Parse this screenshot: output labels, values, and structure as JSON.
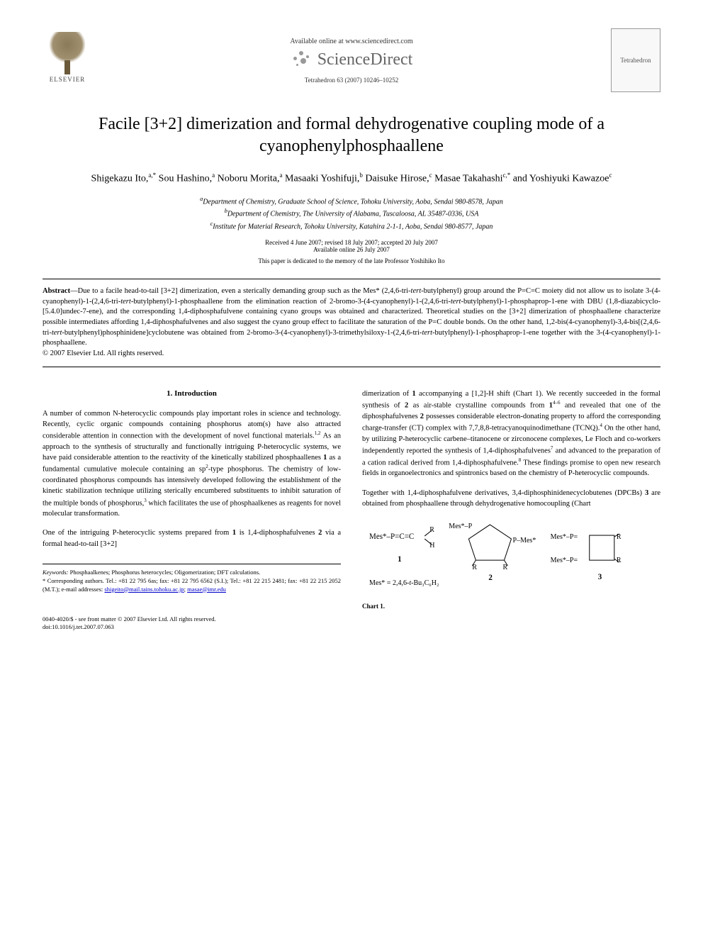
{
  "banner": {
    "publisher": "ELSEVIER",
    "available_text": "Available online at www.sciencedirect.com",
    "sd_name": "ScienceDirect",
    "journal_ref": "Tetrahedron 63 (2007) 10246–10252",
    "journal_name": "Tetrahedron"
  },
  "title": "Facile [3+2] dimerization and formal dehydrogenative coupling mode of a cyanophenylphosphaallene",
  "authors_html": "Shigekazu Ito,<sup>a,*</sup> Sou Hashino,<sup>a</sup> Noboru Morita,<sup>a</sup> Masaaki Yoshifuji,<sup>b</sup> Daisuke Hirose,<sup>c</sup> Masae Takahashi<sup>c,*</sup> and Yoshiyuki Kawazoe<sup>c</sup>",
  "affiliations": {
    "a": "Department of Chemistry, Graduate School of Science, Tohoku University, Aoba, Sendai 980-8578, Japan",
    "b": "Department of Chemistry, The University of Alabama, Tuscaloosa, AL 35487-0336, USA",
    "c": "Institute for Material Research, Tohoku University, Katahira 2-1-1, Aoba, Sendai 980-8577, Japan"
  },
  "dates": {
    "received": "Received 4 June 2007; revised 18 July 2007; accepted 20 July 2007",
    "online": "Available online 26 July 2007"
  },
  "dedication": "This paper is dedicated to the memory of the late Professor Yoshihiko Ito",
  "abstract_label": "Abstract",
  "abstract_body": "—Due to a facile head-to-tail [3+2] dimerization, even a sterically demanding group such as the Mes* (2,4,6-tri-<i>tert</i>-butylphenyl) group around the P=C=C moiety did not allow us to isolate 3-(4-cyanophenyl)-1-(2,4,6-tri-<i>tert</i>-butylphenyl)-1-phosphaallene from the elimination reaction of 2-bromo-3-(4-cyanophenyl)-1-(2,4,6-tri-<i>tert</i>-butylphenyl)-1-phosphaprop-1-ene with DBU (1,8-diazabicyclo-[5.4.0]undec-7-ene), and the corresponding 1,4-diphosphafulvene containing cyano groups was obtained and characterized. Theoretical studies on the [3+2] dimerization of phosphaallene characterize possible intermediates affording 1,4-diphosphafulvenes and also suggest the cyano group effect to facilitate the saturation of the P=C double bonds. On the other hand, 1,2-bis(4-cyanophenyl)-3,4-bis[(2,4,6-tri-<i>tert</i>-butylphenyl)phosphinidene]cyclobutene was obtained from 2-bromo-3-(4-cyanophenyl)-3-trimethylsiloxy-1-(2,4,6-tri-<i>tert</i>-butylphenyl)-1-phosphaprop-1-ene together with the 3-(4-cyanophenyl)-1-phosphaallene.",
  "copyright_abs": "© 2007 Elsevier Ltd. All rights reserved.",
  "section1": {
    "heading": "1. Introduction",
    "p1": "A number of common N-heterocyclic compounds play important roles in science and technology. Recently, cyclic organic compounds containing phosphorus atom(s) have also attracted considerable attention in connection with the development of novel functional materials.<sup>1,2</sup> As an approach to the synthesis of structurally and functionally intriguing P-heterocyclic systems, we have paid considerable attention to the reactivity of the kinetically stabilized phosphaallenes <b>1</b> as a fundamental cumulative molecule containing an sp<sup>2</sup>-type phosphorus. The chemistry of low-coordinated phosphorus compounds has intensively developed following the establishment of the kinetic stabilization technique utilizing sterically encumbered substituents to inhibit saturation of the multiple bonds of phosphorus,<sup>3</sup> which facilitates the use of phosphaalkenes as reagents for novel molecular transformation.",
    "p2": "One of the intriguing P-heterocyclic systems prepared from <b>1</b> is 1,4-diphosphafulvenes <b>2</b> via a formal head-to-tail [3+2]",
    "p3": "dimerization of <b>1</b> accompanying a [1,2]-H shift (Chart 1). We recently succeeded in the formal synthesis of <b>2</b> as air-stable crystalline compounds from <b>1</b><sup>4–6</sup> and revealed that one of the diphosphafulvenes <b>2</b> possesses considerable electron-donating property to afford the corresponding charge-transfer (CT) complex with 7,7,8,8-tetracyanoquinodimethane (TCNQ).<sup>4</sup> On the other hand, by utilizing P-heterocyclic carbene–titanocene or zirconocene complexes, Le Floch and co-workers independently reported the synthesis of 1,4-diphosphafulvenes<sup>7</sup> and advanced to the preparation of a cation radical derived from 1,4-diphosphafulvene.<sup>8</sup> These findings promise to open new research fields in organoelectronics and spintronics based on the chemistry of P-heterocyclic compounds.",
    "p4": "Together with 1,4-diphosphafulvene derivatives, 3,4-diphosphinidenecyclobutenes (DPCBs) <b>3</b> are obtained from phosphaallene through dehydrogenative homocoupling (Chart"
  },
  "chart1": {
    "caption": "Chart 1.",
    "structures": [
      {
        "label": "1",
        "desc": "Mes*-P=C=C(H)(R)"
      },
      {
        "label": "2",
        "desc": "Mes*-P cyclopentadiene P-Mes* with R,R"
      },
      {
        "label": "3",
        "desc": "cyclobutene with =P-Mes* x2 and R,R"
      }
    ],
    "mes_def": "Mes* = 2,4,6-t-Bu₃C₆H₂"
  },
  "footnotes": {
    "keywords_label": "Keywords:",
    "keywords": " Phosphaalkenes; Phosphorus heterocycles; Oligomerization; DFT calculations.",
    "corresp": "* Corresponding authors. Tel.: +81 22 795 6as; fax: +81 22 795 6562 (S.I.); Tel.: +81 22 215 2481; fax: +81 22 215 2052 (M.T.); e-mail addresses: ",
    "email1": "shigeito@mail.tains.tohoku.ac.jp",
    "email2": "masae@imr.edu"
  },
  "bottom": {
    "issn": "0040-4020/$ - see front matter © 2007 Elsevier Ltd. All rights reserved.",
    "doi": "doi:10.1016/j.tet.2007.07.063"
  },
  "colors": {
    "text": "#000000",
    "link": "#0000cc",
    "gray": "#666666",
    "rule": "#000000"
  }
}
